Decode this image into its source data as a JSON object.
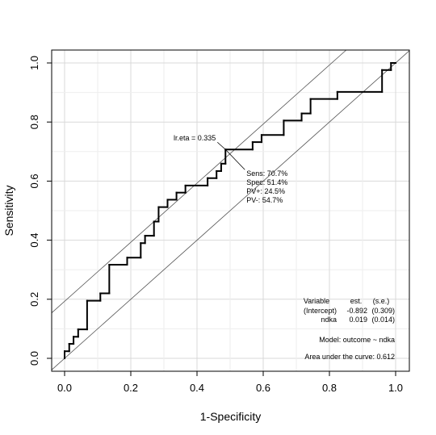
{
  "chart_data": {
    "type": "line",
    "xlabel": "1-Specificity",
    "ylabel": "Sensitivity",
    "xlim": [
      0,
      1
    ],
    "ylim": [
      0,
      1
    ],
    "x_ticks": [
      "0.0",
      "0.2",
      "0.4",
      "0.6",
      "0.8",
      "1.0"
    ],
    "y_ticks": [
      "0.0",
      "0.2",
      "0.4",
      "0.6",
      "0.8",
      "1.0"
    ],
    "grid": true,
    "series": [
      {
        "values": [
          [
            0,
            0
          ],
          [
            0,
            0.024
          ],
          [
            0.014,
            0.024
          ],
          [
            0.014,
            0.049
          ],
          [
            0.027,
            0.049
          ],
          [
            0.027,
            0.073
          ],
          [
            0.041,
            0.073
          ],
          [
            0.041,
            0.098
          ],
          [
            0.068,
            0.098
          ],
          [
            0.068,
            0.195
          ],
          [
            0.108,
            0.195
          ],
          [
            0.108,
            0.22
          ],
          [
            0.135,
            0.22
          ],
          [
            0.135,
            0.317
          ],
          [
            0.189,
            0.317
          ],
          [
            0.189,
            0.341
          ],
          [
            0.23,
            0.341
          ],
          [
            0.23,
            0.39
          ],
          [
            0.243,
            0.39
          ],
          [
            0.243,
            0.415
          ],
          [
            0.27,
            0.415
          ],
          [
            0.27,
            0.463
          ],
          [
            0.284,
            0.463
          ],
          [
            0.284,
            0.512
          ],
          [
            0.311,
            0.512
          ],
          [
            0.311,
            0.537
          ],
          [
            0.338,
            0.537
          ],
          [
            0.338,
            0.561
          ],
          [
            0.365,
            0.561
          ],
          [
            0.365,
            0.585
          ],
          [
            0.432,
            0.585
          ],
          [
            0.432,
            0.61
          ],
          [
            0.459,
            0.61
          ],
          [
            0.459,
            0.634
          ],
          [
            0.473,
            0.634
          ],
          [
            0.473,
            0.659
          ],
          [
            0.486,
            0.659
          ],
          [
            0.486,
            0.707
          ],
          [
            0.568,
            0.707
          ],
          [
            0.568,
            0.732
          ],
          [
            0.595,
            0.732
          ],
          [
            0.595,
            0.756
          ],
          [
            0.662,
            0.756
          ],
          [
            0.662,
            0.805
          ],
          [
            0.716,
            0.805
          ],
          [
            0.716,
            0.829
          ],
          [
            0.743,
            0.829
          ],
          [
            0.743,
            0.878
          ],
          [
            0.824,
            0.878
          ],
          [
            0.824,
            0.902
          ],
          [
            0.959,
            0.902
          ],
          [
            0.959,
            0.976
          ],
          [
            0.986,
            0.976
          ],
          [
            0.986,
            1.0
          ],
          [
            1.0,
            1.0
          ]
        ]
      }
    ],
    "reference_lines": [
      {
        "slope": 1,
        "intercept": 0
      },
      {
        "slope": 1,
        "intercept": 0.193
      }
    ],
    "cutpoint": {
      "label": "lr.eta = 0.335",
      "x": 0.486,
      "y": 0.707,
      "stats": [
        "Sens: 70.7%",
        "Spec: 51.4%",
        "PV+: 24.5%",
        "PV-: 54.7%"
      ]
    },
    "model_table": {
      "headers": [
        "Variable",
        "est.",
        "(s.e.)"
      ],
      "rows": [
        [
          "(Intercept)",
          "-0.892",
          "(0.309)"
        ],
        [
          "ndka",
          "0.019",
          "(0.014)"
        ]
      ],
      "model": "Model:  outcome ~ ndka",
      "auc": "Area under the curve: 0.612"
    }
  }
}
